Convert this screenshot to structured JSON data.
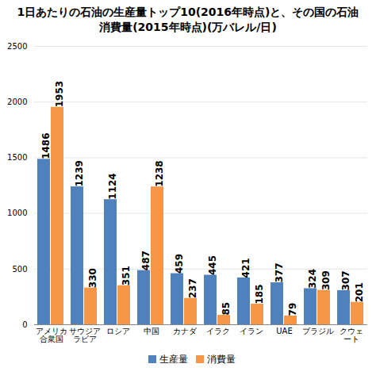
{
  "chart_data": {
    "type": "bar",
    "title": "1日あたりの石油の生産量トップ10(2016年時点)と、その国の石油消費量(2015年時点)(万バレル/日)",
    "categories": [
      "アメリカ合衆国",
      "サウジアラビア",
      "ロシア",
      "中国",
      "カナダ",
      "イラク",
      "イラン",
      "UAE",
      "ブラジル",
      "クウェート"
    ],
    "series": [
      {
        "name": "生産量",
        "color": "#4f81bd",
        "values": [
          1486,
          1239,
          1124,
          487,
          459,
          445,
          421,
          377,
          324,
          307
        ]
      },
      {
        "name": "消費量",
        "color": "#f79646",
        "values": [
          1953,
          330,
          351,
          1238,
          237,
          85,
          185,
          79,
          309,
          201
        ]
      }
    ],
    "ylim": [
      0,
      2500
    ],
    "yticks": [
      0,
      500,
      1000,
      1500,
      2000,
      2500
    ],
    "grid": true,
    "data_labels": true,
    "legend": "bottom"
  }
}
